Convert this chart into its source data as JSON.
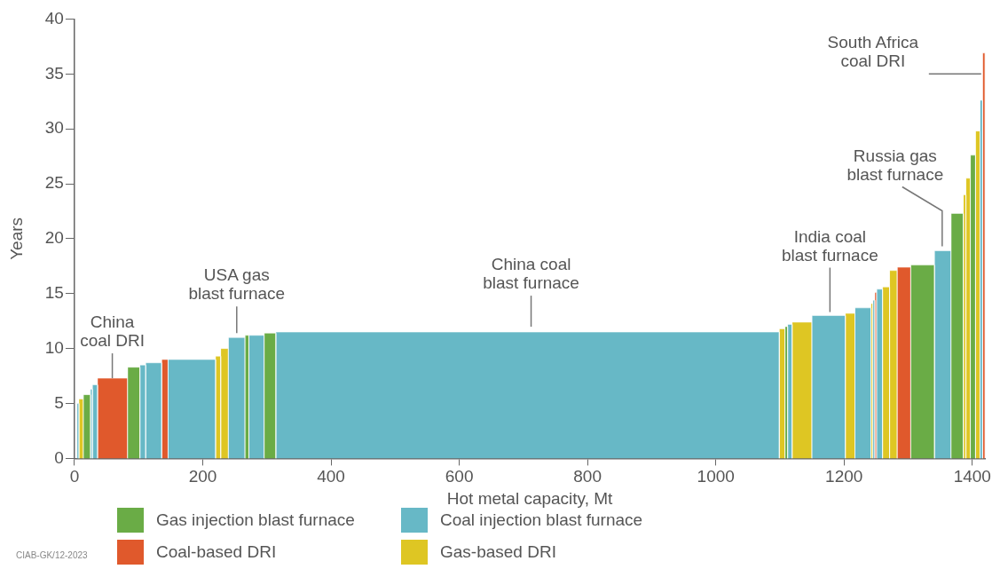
{
  "chart_data": {
    "type": "histogram",
    "xlabel": "Hot metal capacity, Mt",
    "ylabel": "Years",
    "bins": [
      4,
      7,
      14,
      25,
      28,
      36,
      83,
      102,
      111,
      136,
      146,
      220,
      228,
      240,
      266,
      272,
      296,
      314,
      1099,
      1108,
      1112,
      1119,
      1150,
      1202,
      1217,
      1242,
      1245,
      1248,
      1251,
      1260,
      1271,
      1283,
      1304,
      1341,
      1367,
      1386,
      1390,
      1397,
      1405,
      1412,
      1416,
      1420
    ],
    "series": [
      {
        "name": "Gas injection blast furnace",
        "color": "#6aac46",
        "values": [
          null,
          null,
          5.8,
          null,
          null,
          null,
          8.3,
          null,
          null,
          null,
          null,
          null,
          null,
          null,
          11.2,
          null,
          11.4,
          null,
          null,
          12.0,
          null,
          null,
          null,
          null,
          null,
          null,
          null,
          null,
          null,
          null,
          null,
          null,
          17.6,
          null,
          22.3,
          null,
          null,
          27.6,
          null,
          null,
          null
        ]
      },
      {
        "name": "Coal injection blast furnace",
        "color": "#67b8c6",
        "values": [
          5.0,
          null,
          null,
          6.3,
          6.7,
          null,
          null,
          8.5,
          8.7,
          null,
          9.0,
          null,
          null,
          11.0,
          null,
          11.2,
          null,
          11.5,
          null,
          null,
          12.2,
          null,
          13.0,
          null,
          13.7,
          null,
          14.4,
          null,
          15.4,
          null,
          null,
          null,
          null,
          18.9,
          null,
          null,
          null,
          null,
          null,
          32.6,
          null
        ]
      },
      {
        "name": "Coal-based DRI",
        "color": "#e0592c",
        "values": [
          null,
          null,
          null,
          null,
          null,
          7.3,
          null,
          null,
          null,
          9.0,
          null,
          null,
          null,
          null,
          null,
          null,
          null,
          null,
          null,
          null,
          null,
          null,
          null,
          null,
          null,
          null,
          null,
          15.1,
          null,
          null,
          null,
          17.4,
          null,
          null,
          null,
          null,
          null,
          null,
          null,
          null,
          36.9
        ]
      },
      {
        "name": "Gas-based DRI",
        "color": "#dec623",
        "values": [
          null,
          5.4,
          null,
          null,
          null,
          null,
          null,
          null,
          null,
          null,
          null,
          9.3,
          10.0,
          null,
          null,
          null,
          null,
          null,
          11.8,
          null,
          null,
          12.4,
          null,
          13.2,
          null,
          14.1,
          null,
          null,
          null,
          15.6,
          17.1,
          null,
          null,
          null,
          null,
          24.0,
          25.5,
          null,
          29.8,
          null,
          null
        ]
      }
    ],
    "xlim": [
      0,
      1420
    ],
    "xticks": [
      0,
      200,
      400,
      600,
      800,
      1000,
      1200,
      1400
    ],
    "ylim": [
      0,
      40
    ],
    "yticks": [
      0,
      5,
      10,
      15,
      20,
      25,
      30,
      35,
      40
    ],
    "grid": false,
    "legend": "bottom",
    "annotations": [
      {
        "text": "China\ncoal DRI",
        "x": 59,
        "y": 7.3
      },
      {
        "text": "USA gas\nblast furnace",
        "x": 253,
        "y": 11.0
      },
      {
        "text": "China coal\nblast furnace",
        "x": 712,
        "y": 11.5
      },
      {
        "text": "India coal\nblast furnace",
        "x": 1178,
        "y": 13.0
      },
      {
        "text": "Russia gas\nblast furnace",
        "x": 1353,
        "y": 18.9
      },
      {
        "text": "South Africa\ncoal DRI",
        "x": 1418,
        "y": 35
      },
      "CIAB-GK/12-2023"
    ]
  }
}
